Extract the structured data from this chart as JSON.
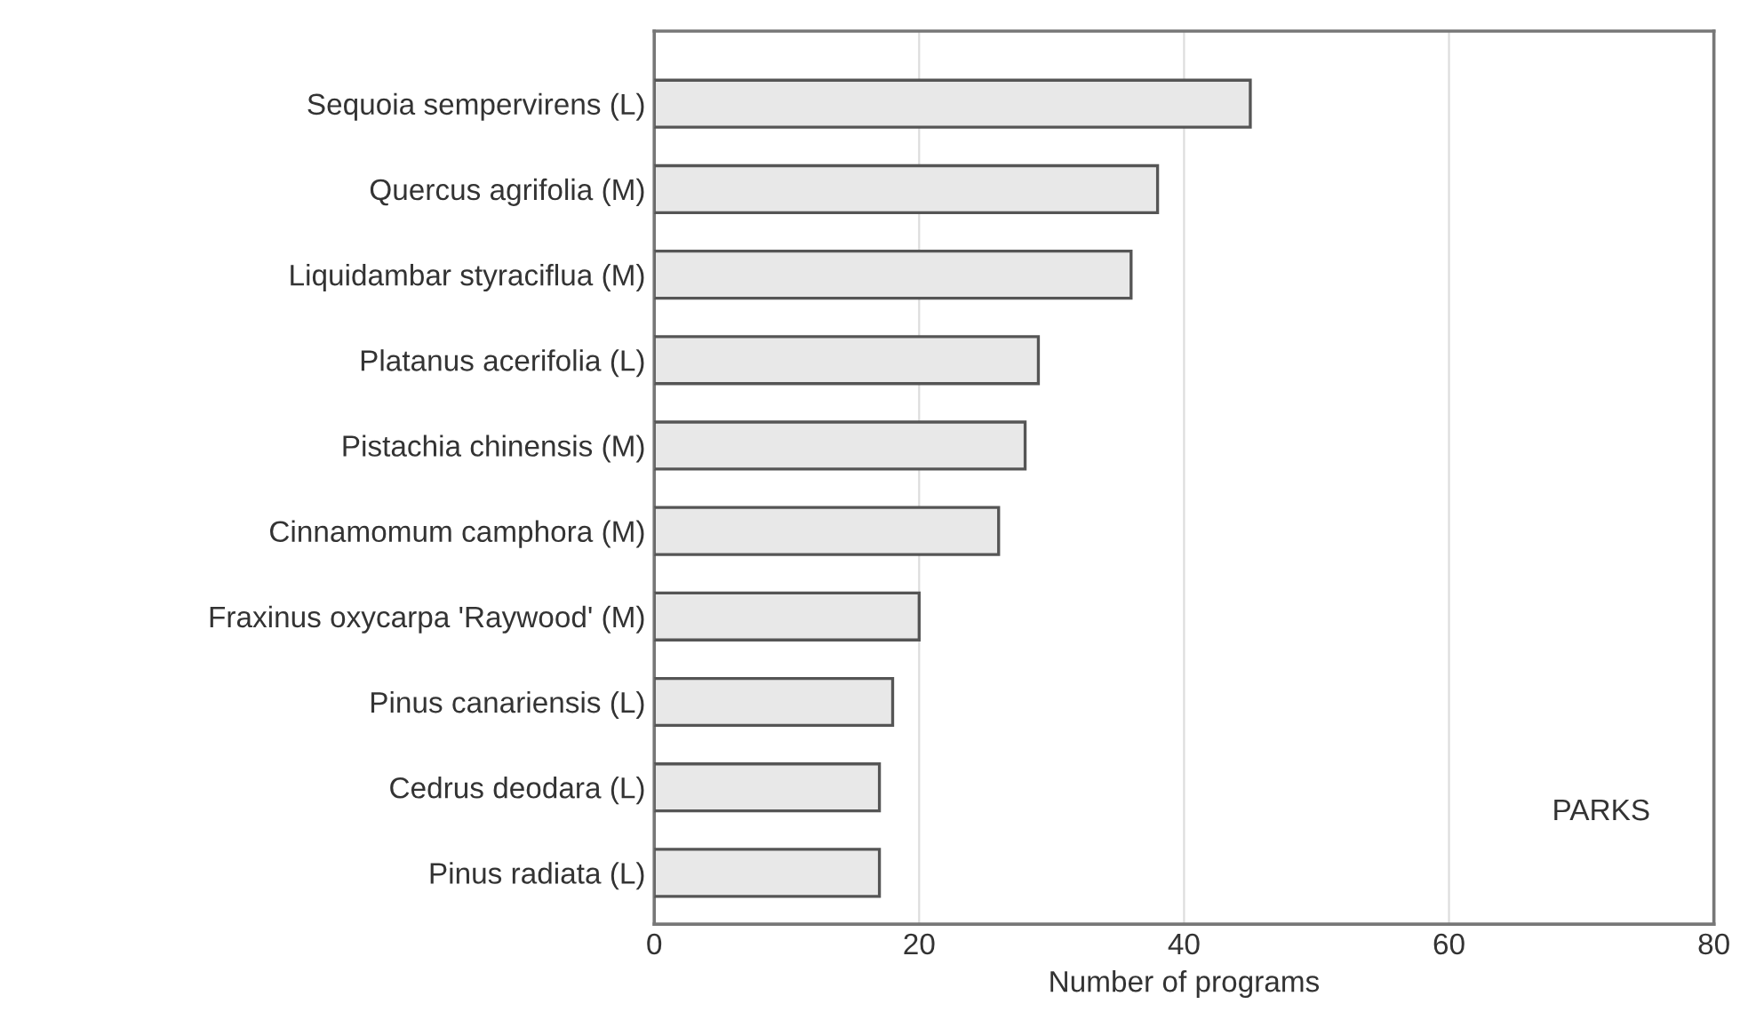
{
  "chart_data": {
    "type": "bar",
    "orientation": "horizontal",
    "xlabel": "Number of programs",
    "categories": [
      "Sequoia sempervirens (L)",
      "Quercus agrifolia (M)",
      "Liquidambar styraciflua (M)",
      "Platanus acerifolia (L)",
      "Pistachia chinensis (M)",
      "Cinnamomum camphora (M)",
      "Fraxinus oxycarpa 'Raywood' (M)",
      "Pinus canariensis (L)",
      "Cedrus deodara (L)",
      "Pinus radiata (L)"
    ],
    "values": [
      45,
      38,
      36,
      29,
      28,
      26,
      20,
      18,
      17,
      17
    ],
    "color": "#e8e8e8",
    "xlim": [
      0,
      80
    ],
    "xticks": [
      0,
      20,
      40,
      60,
      80
    ],
    "grid": "x",
    "annotations": [
      "PARKS"
    ]
  }
}
